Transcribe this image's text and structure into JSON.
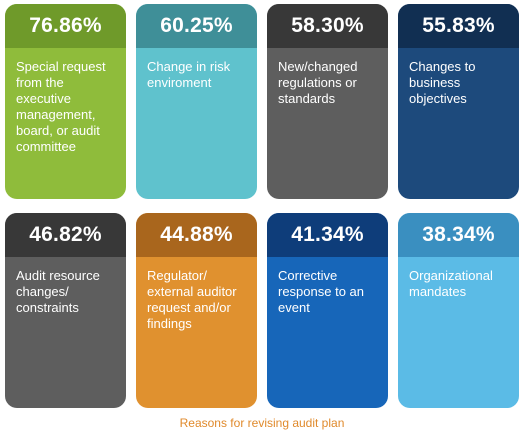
{
  "chart_data": {
    "type": "table",
    "title": "",
    "caption": "Reasons for revising audit plan",
    "items": [
      {
        "value": "76.86%",
        "label": "Special request from the executive management, board, or audit committee",
        "header_color": "#6f9a2a",
        "body_color": "#8fbc3b"
      },
      {
        "value": "60.25%",
        "label": "Change in risk enviroment",
        "header_color": "#3f8f98",
        "body_color": "#5fc2cd"
      },
      {
        "value": "58.30%",
        "label": "New/changed regulations or standards",
        "header_color": "#383838",
        "body_color": "#5e5e5e"
      },
      {
        "value": "55.83%",
        "label": "Changes to business objectives",
        "header_color": "#112f52",
        "body_color": "#1d4a7c"
      },
      {
        "value": "46.82%",
        "label": "Audit resource changes/ constraints",
        "header_color": "#383838",
        "body_color": "#5e5e5e"
      },
      {
        "value": "44.88%",
        "label": "Regulator/ external auditor request and/or findings",
        "header_color": "#a9661d",
        "body_color": "#e0912f"
      },
      {
        "value": "41.34%",
        "label": "Corrective response to an event",
        "header_color": "#0e3d7a",
        "body_color": "#1766b9"
      },
      {
        "value": "38.34%",
        "label": "Organizational mandates",
        "header_color": "#3a8fc0",
        "body_color": "#5bbbe6"
      }
    ]
  }
}
